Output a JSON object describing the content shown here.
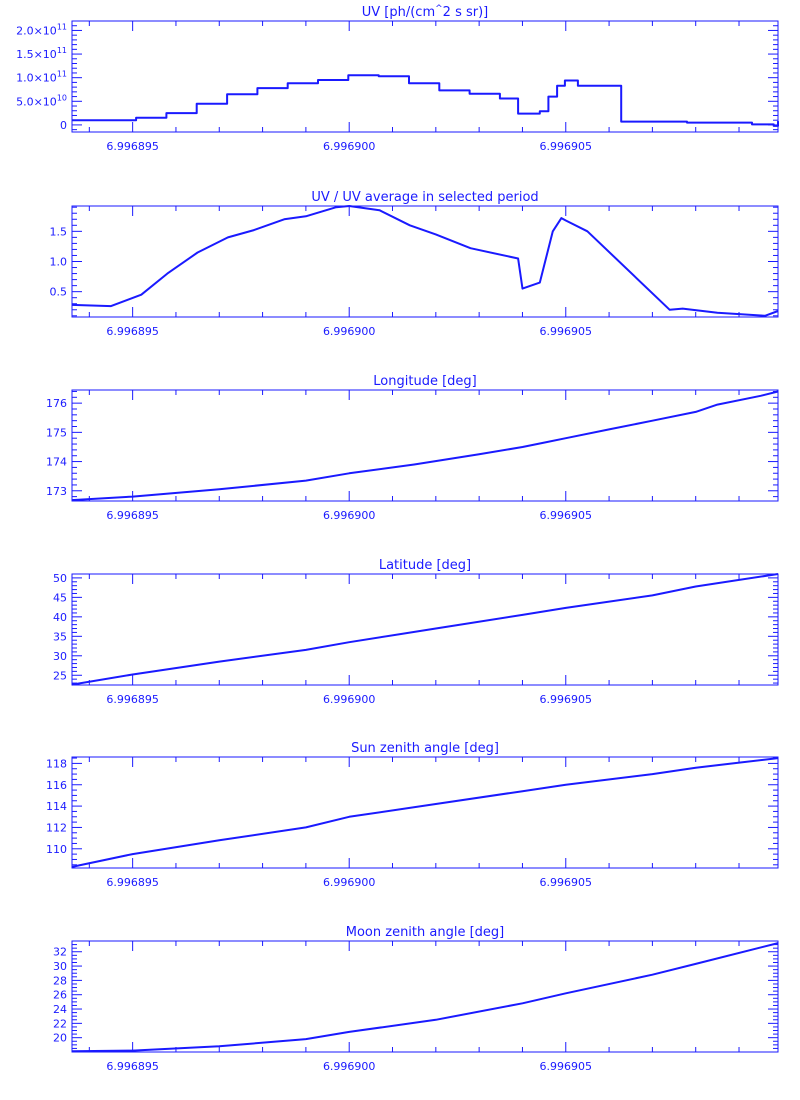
{
  "colors": {
    "plot": "#1a1aff",
    "background": "#ffffff"
  },
  "chart_data": [
    {
      "type": "line",
      "title": "UV [ph/(cm^2 s sr)]",
      "title_parts": {
        "pre": "UV [ph/(cm",
        "sup": "^",
        "post": "2 s sr)]"
      },
      "xlabel": "",
      "ylabel": "",
      "xlim": [
        6.9968936,
        6.9969099
      ],
      "ylim": [
        -15000000000.0,
        220000000000.0
      ],
      "x_ticks": [
        6.996895,
        6.9969,
        6.996905
      ],
      "x_tick_labels": [
        "6.996895",
        "6.996900",
        "6.996905"
      ],
      "y_ticks": [
        0,
        50000000000.0,
        100000000000.0,
        150000000000.0,
        200000000000.0
      ],
      "y_tick_labels": [
        {
          "mant": "0",
          "exp": ""
        },
        {
          "mant": "5.0×10",
          "exp": "10"
        },
        {
          "mant": "1.0×10",
          "exp": "11"
        },
        {
          "mant": "1.5×10",
          "exp": "11"
        },
        {
          "mant": "2.0×10",
          "exp": "11"
        }
      ],
      "step": true,
      "x": [
        6.9968936,
        6.99689438,
        6.99689508,
        6.99689578,
        6.99689648,
        6.99689718,
        6.99689788,
        6.99689858,
        6.99689928,
        6.99689998,
        6.99690068,
        6.99690138,
        6.99690208,
        6.99690278,
        6.99690348,
        6.9969039,
        6.9969044,
        6.9969046,
        6.9969048,
        6.99690498,
        6.99690528,
        6.99690628,
        6.99690628,
        6.9969078,
        6.9969093,
        6.9969098,
        6.9969099
      ],
      "y": [
        10000000000.0,
        10000000000.0,
        15000000000.0,
        25000000000.0,
        45000000000.0,
        65000000000.0,
        78000000000.0,
        88000000000.0,
        95000000000.0,
        105000000000.0,
        103000000000.0,
        88000000000.0,
        73000000000.0,
        66000000000.0,
        56000000000.0,
        24000000000.0,
        29000000000.0,
        60000000000.0,
        83000000000.0,
        94000000000.0,
        83000000000.0,
        83000000000.0,
        7000000000.0,
        5000000000.0,
        1000000000.0,
        -2000000000.0,
        8000000000.0
      ]
    },
    {
      "type": "line",
      "title": "UV / UV average in selected period",
      "xlabel": "",
      "ylabel": "",
      "xlim": [
        6.9968936,
        6.9969099
      ],
      "ylim": [
        0.08,
        1.92
      ],
      "x_ticks": [
        6.996895,
        6.9969,
        6.996905
      ],
      "x_tick_labels": [
        "6.996895",
        "6.996900",
        "6.996905"
      ],
      "y_ticks": [
        0.5,
        1.0,
        1.5
      ],
      "y_tick_labels": [
        "0.5",
        "1.0",
        "1.5"
      ],
      "x": [
        6.9968936,
        6.9968945,
        6.9968952,
        6.9968958,
        6.9968965,
        6.9968972,
        6.9968978,
        6.9968985,
        6.996899,
        6.9968997,
        6.9969,
        6.9969007,
        6.9969014,
        6.996902,
        6.9969028,
        6.9969039,
        6.996904,
        6.9969044,
        6.9969047,
        6.9969049,
        6.996905,
        6.9969055,
        6.9969074,
        6.9969077,
        6.9969085,
        6.9969096,
        6.9969099
      ],
      "y": [
        0.28,
        0.26,
        0.45,
        0.8,
        1.15,
        1.4,
        1.52,
        1.7,
        1.75,
        1.9,
        1.92,
        1.85,
        1.6,
        1.45,
        1.22,
        1.05,
        0.55,
        0.65,
        1.5,
        1.72,
        1.68,
        1.5,
        0.2,
        0.22,
        0.15,
        0.1,
        0.18
      ]
    },
    {
      "type": "line",
      "title": "Longitude [deg]",
      "xlabel": "",
      "ylabel": "",
      "xlim": [
        6.9968936,
        6.9969099
      ],
      "ylim": [
        172.65,
        176.45
      ],
      "x_ticks": [
        6.996895,
        6.9969,
        6.996905
      ],
      "x_tick_labels": [
        "6.996895",
        "6.996900",
        "6.996905"
      ],
      "y_ticks": [
        173,
        174,
        175,
        176
      ],
      "y_tick_labels": [
        "173",
        "174",
        "175",
        "176"
      ],
      "x": [
        6.9968936,
        6.996895,
        6.996897,
        6.996899,
        6.9969,
        6.9969015,
        6.996903,
        6.996904,
        6.9969045,
        6.996905,
        6.996906,
        6.996907,
        6.996908,
        6.9969085,
        6.9969095,
        6.9969099
      ],
      "y": [
        172.68,
        172.8,
        173.05,
        173.35,
        173.6,
        173.9,
        174.25,
        174.5,
        174.65,
        174.8,
        175.1,
        175.4,
        175.7,
        175.95,
        176.25,
        176.4
      ]
    },
    {
      "type": "line",
      "title": "Latitude [deg]",
      "xlabel": "",
      "ylabel": "",
      "xlim": [
        6.9968936,
        6.9969099
      ],
      "ylim": [
        22.5,
        51.0
      ],
      "x_ticks": [
        6.996895,
        6.9969,
        6.996905
      ],
      "x_tick_labels": [
        "6.996895",
        "6.996900",
        "6.996905"
      ],
      "y_ticks": [
        25,
        30,
        35,
        40,
        45,
        50
      ],
      "y_tick_labels": [
        "25",
        "30",
        "35",
        "40",
        "45",
        "50"
      ],
      "x": [
        6.9968936,
        6.996895,
        6.996897,
        6.996899,
        6.9969,
        6.996902,
        6.996904,
        6.996905,
        6.996907,
        6.996908,
        6.9969099
      ],
      "y": [
        22.6,
        25.2,
        28.5,
        31.5,
        33.5,
        37.0,
        40.5,
        42.3,
        45.5,
        47.8,
        51.0
      ]
    },
    {
      "type": "line",
      "title": "Sun zenith angle [deg]",
      "xlabel": "",
      "ylabel": "",
      "xlim": [
        6.9968936,
        6.9969099
      ],
      "ylim": [
        108.2,
        118.6
      ],
      "x_ticks": [
        6.996895,
        6.9969,
        6.996905
      ],
      "x_tick_labels": [
        "6.996895",
        "6.996900",
        "6.996905"
      ],
      "y_ticks": [
        110,
        112,
        114,
        116,
        118
      ],
      "y_tick_labels": [
        "110",
        "112",
        "114",
        "116",
        "118"
      ],
      "x": [
        6.9968936,
        6.996895,
        6.996897,
        6.996899,
        6.9969,
        6.996902,
        6.996904,
        6.996905,
        6.996907,
        6.996908,
        6.9969099
      ],
      "y": [
        108.3,
        109.5,
        110.8,
        112.0,
        113.0,
        114.2,
        115.4,
        116.0,
        117.0,
        117.6,
        118.5
      ]
    },
    {
      "type": "line",
      "title": "Moon zenith angle [deg]",
      "xlabel": "",
      "ylabel": "",
      "xlim": [
        6.9968936,
        6.9969099
      ],
      "ylim": [
        18.0,
        33.5
      ],
      "x_ticks": [
        6.996895,
        6.9969,
        6.996905
      ],
      "x_tick_labels": [
        "6.996895",
        "6.996900",
        "6.996905"
      ],
      "y_ticks": [
        20,
        22,
        24,
        26,
        28,
        30,
        32
      ],
      "y_tick_labels": [
        "20",
        "22",
        "24",
        "26",
        "28",
        "30",
        "32"
      ],
      "x": [
        6.9968936,
        6.996895,
        6.996897,
        6.996899,
        6.9969,
        6.996902,
        6.996904,
        6.996905,
        6.996907,
        6.996908,
        6.9969099
      ],
      "y": [
        18.1,
        18.2,
        18.8,
        19.8,
        20.8,
        22.5,
        24.8,
        26.2,
        28.8,
        30.3,
        33.2
      ]
    }
  ]
}
